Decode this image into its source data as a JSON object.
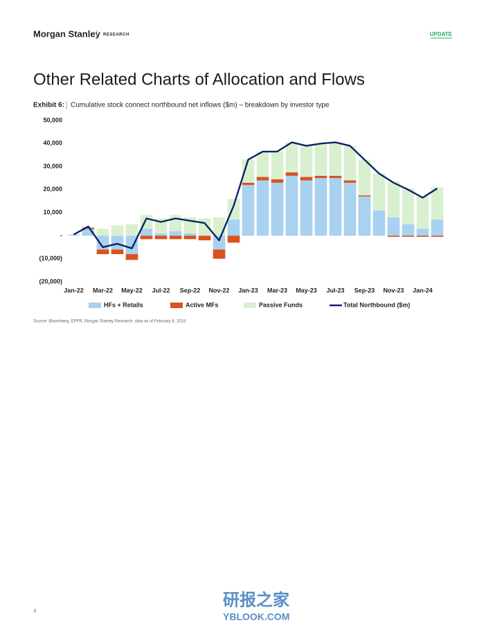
{
  "header": {
    "brand": "Morgan Stanley",
    "section": "RESEARCH",
    "tag": "UPDATE"
  },
  "page_title": "Other Related Charts of Allocation and Flows",
  "exhibit_label": "Exhibit 6:",
  "chart_data": {
    "type": "bar",
    "stacked": true,
    "title": "Cumulative stock connect northbound net inflows ($m) – breakdown by investor type",
    "categories": [
      "Jan-22",
      null,
      "Mar-22",
      null,
      "May-22",
      null,
      "Jul-22",
      null,
      "Sep-22",
      null,
      "Nov-22",
      null,
      "Jan-23",
      null,
      "Mar-23",
      null,
      "May-23",
      null,
      "Jul-23",
      null,
      "Sep-23",
      null,
      "Nov-23",
      null,
      "Jan-24",
      null
    ],
    "series": [
      {
        "name": "HFs + Retails",
        "type": "bar",
        "color": "#a9d1f0",
        "values": [
          500,
          3000,
          -6000,
          -6000,
          -8000,
          3000,
          1000,
          2000,
          1000,
          0,
          -6000,
          7000,
          22000,
          24000,
          23000,
          26000,
          24000,
          25000,
          25000,
          23000,
          17000,
          11000,
          8000,
          5000,
          3000,
          7000
        ]
      },
      {
        "name": "Active MFs",
        "type": "bar",
        "color": "#d9531e",
        "values": [
          0,
          500,
          -2000,
          -2000,
          -2500,
          -1500,
          -1500,
          -1500,
          -1500,
          -2000,
          -4000,
          -3000,
          1000,
          1500,
          1500,
          1500,
          1500,
          1000,
          1000,
          1000,
          500,
          0,
          -500,
          -500,
          -500,
          -500
        ]
      },
      {
        "name": "Passive Funds",
        "type": "bar",
        "color": "#d9f0d0",
        "values": [
          0,
          500,
          3000,
          4500,
          5000,
          6000,
          6500,
          7000,
          7000,
          7500,
          8000,
          9000,
          10000,
          11000,
          12000,
          13000,
          13500,
          14000,
          14500,
          15000,
          15500,
          16000,
          15500,
          15500,
          14000,
          14000
        ]
      },
      {
        "name": "Total Northbound ($m)",
        "type": "line",
        "color": "#0c2461",
        "values": [
          500,
          4000,
          -5000,
          -3500,
          -5500,
          7500,
          6000,
          7500,
          6500,
          5500,
          -2000,
          13000,
          33000,
          36500,
          36500,
          40500,
          39000,
          40000,
          40500,
          39000,
          33000,
          27000,
          23000,
          20000,
          16500,
          20500
        ]
      }
    ],
    "ylim": [
      -20000,
      50000
    ],
    "yticks": [
      {
        "value": -20000,
        "label": "(20,000)"
      },
      {
        "value": -10000,
        "label": "(10,000)"
      },
      {
        "value": 0,
        "label": "-"
      },
      {
        "value": 10000,
        "label": "10,000"
      },
      {
        "value": 20000,
        "label": "20,000"
      },
      {
        "value": 30000,
        "label": "30,000"
      },
      {
        "value": 40000,
        "label": "40,000"
      },
      {
        "value": 50000,
        "label": "50,000"
      }
    ],
    "grid": false,
    "legend": "bottom"
  },
  "source": "Source: Bloomberg, EPFR, Morgan Stanley Research; data as of February 8, 2024",
  "page_number": "4",
  "watermark": {
    "cn": "研报之家",
    "en": "YBLOOK.COM"
  }
}
